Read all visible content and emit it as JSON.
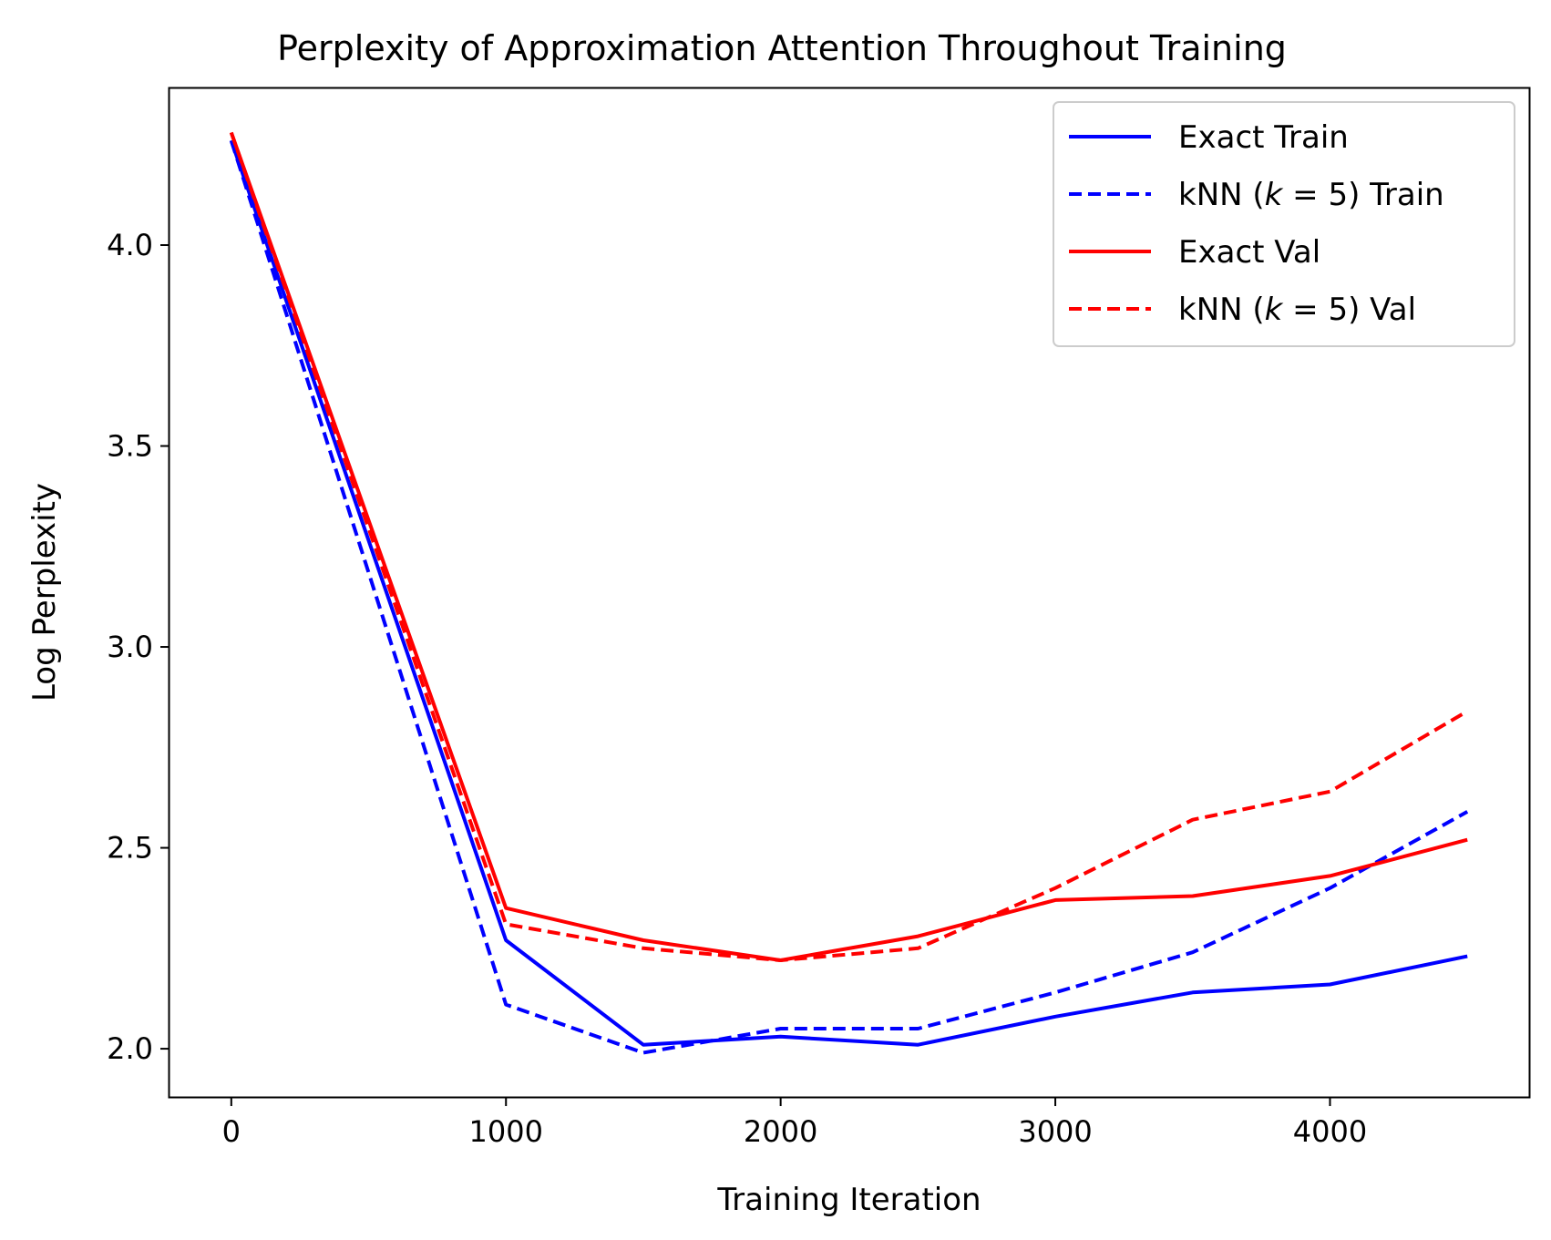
{
  "chart_data": {
    "type": "line",
    "title": "Perplexity of Approximation Attention Throughout Training",
    "xlabel": "Training Iteration",
    "ylabel": "Log Perplexity",
    "xlim": [
      -225,
      4725
    ],
    "ylim": [
      1.88,
      4.39
    ],
    "xticks": [
      0,
      1000,
      2000,
      3000,
      4000
    ],
    "xtick_labels": [
      "0",
      "1000",
      "2000",
      "3000",
      "4000"
    ],
    "yticks": [
      2.0,
      2.5,
      3.0,
      3.5,
      4.0
    ],
    "ytick_labels": [
      "2.0",
      "2.5",
      "3.0",
      "3.5",
      "4.0"
    ],
    "grid": false,
    "legend_position": "top-right",
    "x": [
      0,
      1000,
      1500,
      2000,
      2500,
      3000,
      3500,
      4000,
      4500
    ],
    "series": [
      {
        "name": "Exact Train",
        "color": "#0000ff",
        "style": "solid",
        "values": [
          4.26,
          2.27,
          2.01,
          2.03,
          2.01,
          2.08,
          2.14,
          2.16,
          2.23
        ]
      },
      {
        "name": "kNN (k = 5) Train",
        "color": "#0000ff",
        "style": "dashed",
        "values": [
          4.26,
          2.11,
          1.99,
          2.05,
          2.05,
          2.14,
          2.24,
          2.4,
          2.59
        ]
      },
      {
        "name": "Exact Val",
        "color": "#ff0000",
        "style": "solid",
        "values": [
          4.28,
          2.35,
          2.27,
          2.22,
          2.28,
          2.37,
          2.38,
          2.43,
          2.52
        ]
      },
      {
        "name": "kNN (k = 5) Val",
        "color": "#ff0000",
        "style": "dashed",
        "values": [
          4.28,
          2.31,
          2.25,
          2.22,
          2.25,
          2.4,
          2.57,
          2.64,
          2.84
        ]
      }
    ],
    "legend": [
      {
        "prefix": "Exact Train",
        "italic": "",
        "suffix": ""
      },
      {
        "prefix": "kNN (",
        "italic": "k",
        "suffix": " = 5) Train"
      },
      {
        "prefix": "Exact Val",
        "italic": "",
        "suffix": ""
      },
      {
        "prefix": "kNN (",
        "italic": "k",
        "suffix": " = 5) Val"
      }
    ]
  }
}
